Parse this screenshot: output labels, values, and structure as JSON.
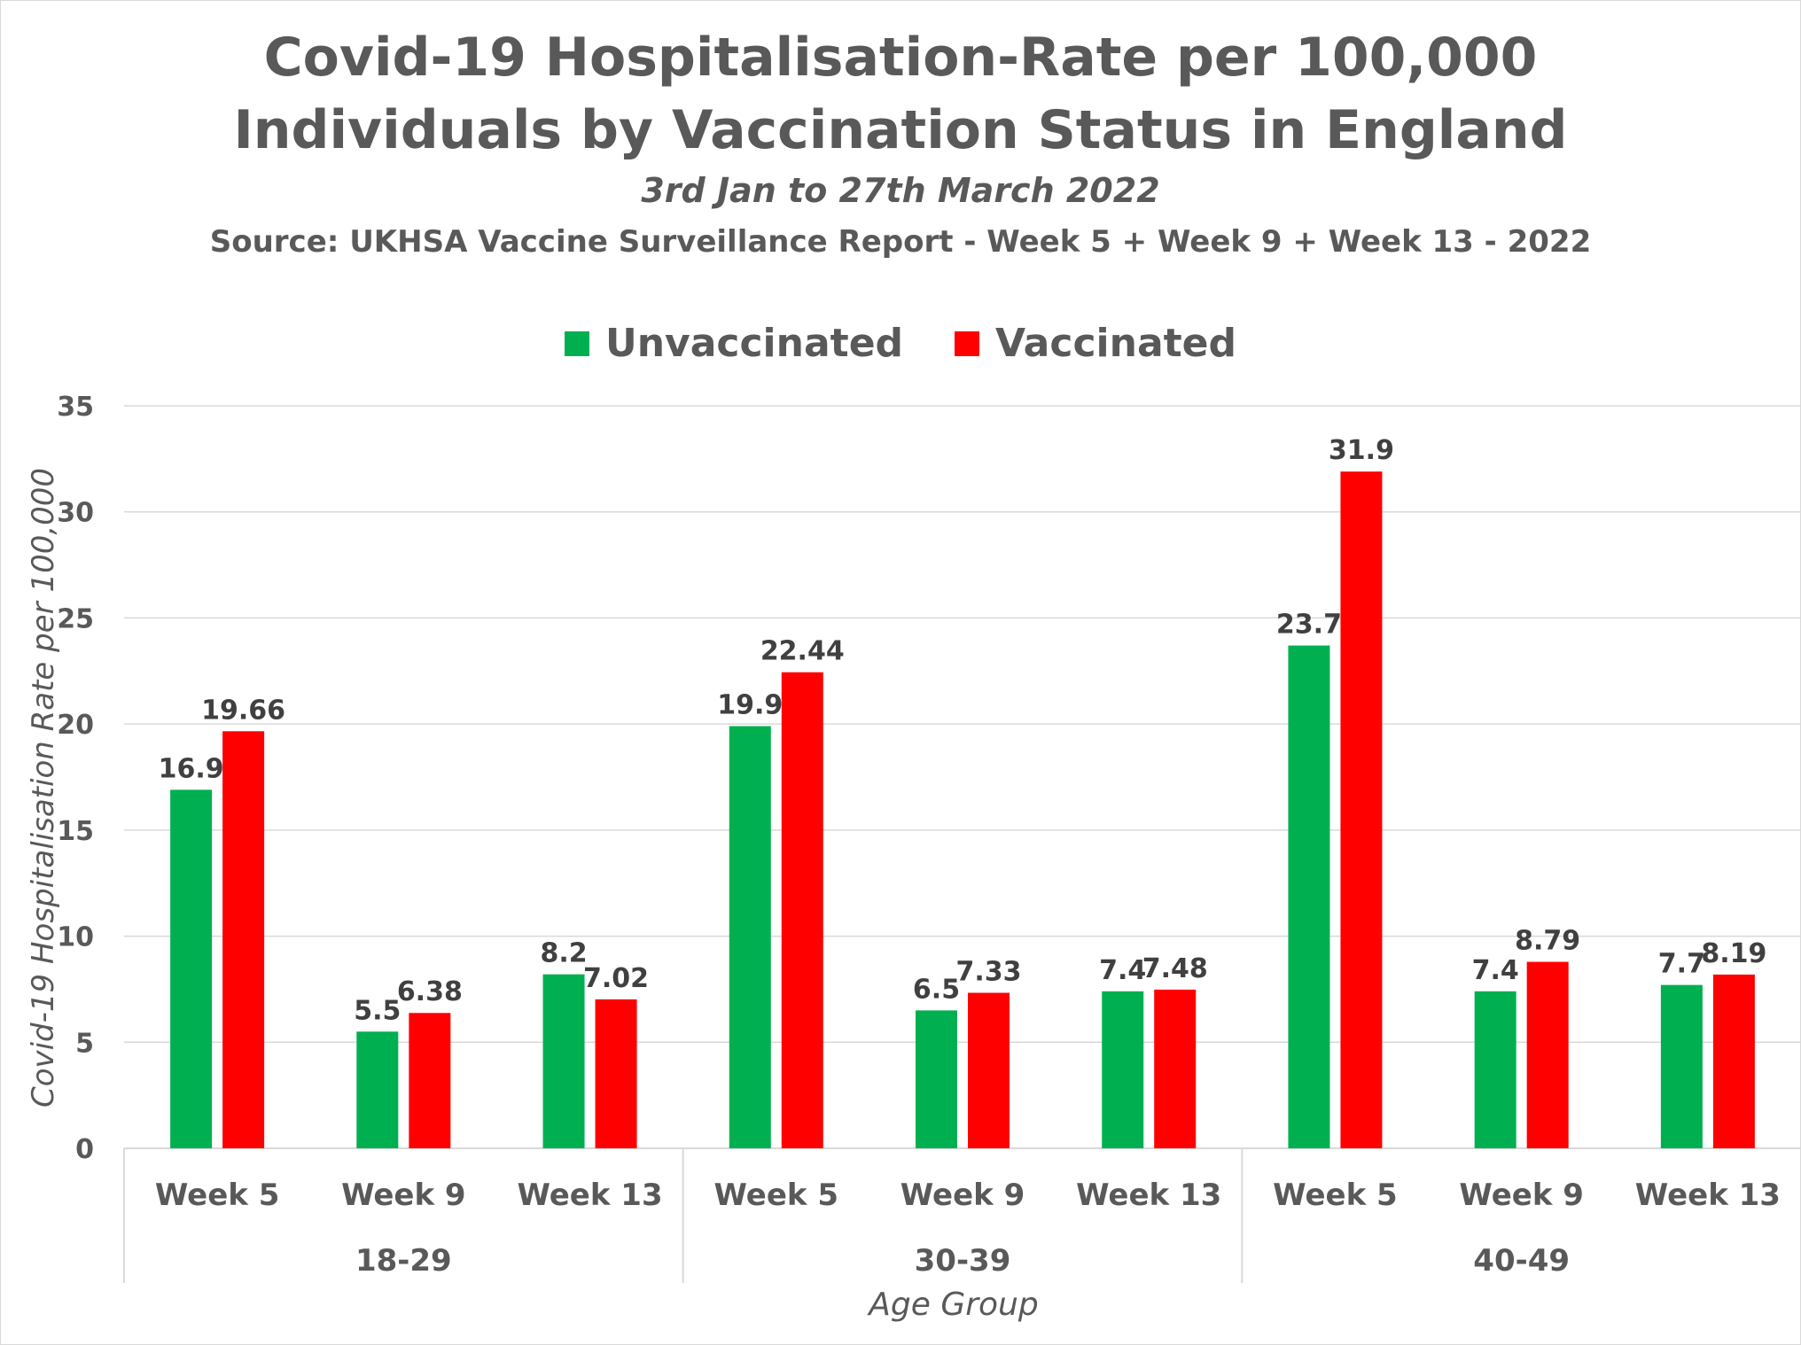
{
  "title_line1": "Covid-19 Hospitalisation-Rate per 100,000",
  "title_line2": "Individuals by Vaccination Status in England",
  "subtitle": "3rd Jan to 27th March 2022",
  "source": "Source: UKHSA Vaccine Surveillance Report - Week 5 + Week 9 + Week 13 - 2022",
  "colors": {
    "unvaccinated": "#00b050",
    "vaccinated": "#ff0000",
    "text": "#595959"
  },
  "chart_data": {
    "type": "bar",
    "title": "Covid-19 Hospitalisation-Rate per 100,000 Individuals by Vaccination Status in England",
    "subtitle": "3rd Jan to 27th March 2022",
    "xlabel": "Age Group",
    "ylabel": "Covid-19 Hospitalisation Rate per 100,000",
    "ylim": [
      0,
      35
    ],
    "yticks": [
      0,
      5,
      10,
      15,
      20,
      25,
      30,
      35
    ],
    "grid": true,
    "legend_position": "top-center",
    "groups": [
      {
        "label": "18-29",
        "categories": [
          "Week 5",
          "Week 9",
          "Week 13"
        ]
      },
      {
        "label": "30-39",
        "categories": [
          "Week 5",
          "Week 9",
          "Week 13"
        ]
      },
      {
        "label": "40-49",
        "categories": [
          "Week 5",
          "Week 9",
          "Week 13"
        ]
      }
    ],
    "categories": [
      "Week 5",
      "Week 9",
      "Week 13",
      "Week 5",
      "Week 9",
      "Week 13",
      "Week 5",
      "Week 9",
      "Week 13"
    ],
    "series": [
      {
        "name": "Unvaccinated",
        "color": "#00b050",
        "values": [
          16.9,
          5.5,
          8.2,
          19.9,
          6.5,
          7.4,
          23.7,
          7.4,
          7.7
        ],
        "labels": [
          "16.9",
          "5.5",
          "8.2",
          "19.9",
          "6.5",
          "7.4",
          "23.7",
          "7.4",
          "7.7"
        ]
      },
      {
        "name": "Vaccinated",
        "color": "#ff0000",
        "values": [
          19.66,
          6.38,
          7.02,
          22.44,
          7.33,
          7.48,
          31.9,
          8.79,
          8.19
        ],
        "labels": [
          "19.66",
          "6.38",
          "7.02",
          "22.44",
          "7.33",
          "7.48",
          "31.9",
          "8.79",
          "8.19"
        ]
      }
    ]
  }
}
